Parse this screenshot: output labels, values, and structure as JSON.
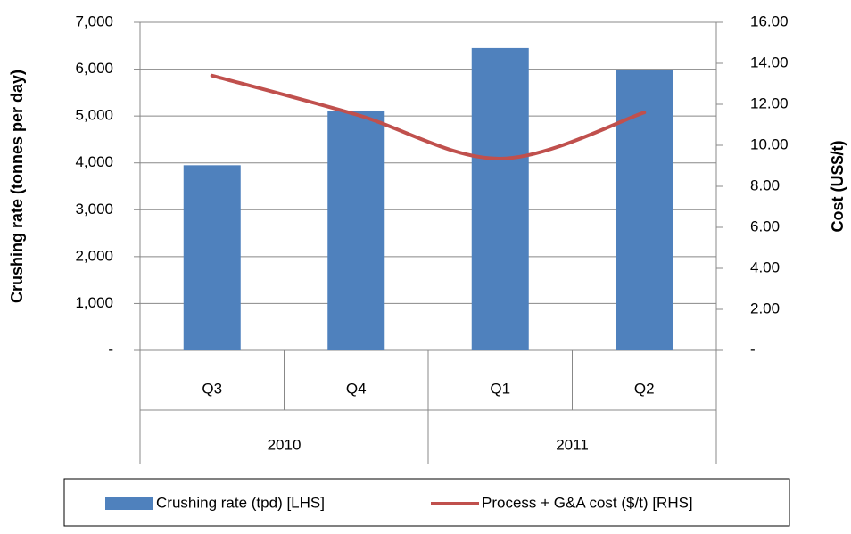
{
  "chart_data": {
    "type": "bar",
    "categories": [
      "Q3",
      "Q4",
      "Q1",
      "Q2"
    ],
    "groups": [
      {
        "label": "2010",
        "count": 2
      },
      {
        "label": "2011",
        "count": 2
      }
    ],
    "series": [
      {
        "name": "Crushing rate (tpd) [LHS]",
        "type": "bar",
        "color": "#4f81bd",
        "values": [
          3950,
          5100,
          6450,
          5980
        ]
      },
      {
        "name": "Process + G&A cost ($/t) [RHS]",
        "type": "line",
        "axis": "y2",
        "color": "#c0504d",
        "values": [
          13.4,
          11.5,
          9.35,
          11.6
        ]
      }
    ],
    "ylabel": "Crushing rate (tonnes per day)",
    "y2label": "Cost (US$/t)",
    "ylim": [
      0,
      7000
    ],
    "yticks": [
      {
        "value": 0,
        "label": "-"
      },
      {
        "value": 1000,
        "label": "1,000"
      },
      {
        "value": 2000,
        "label": "2,000"
      },
      {
        "value": 3000,
        "label": "3,000"
      },
      {
        "value": 4000,
        "label": "4,000"
      },
      {
        "value": 5000,
        "label": "5,000"
      },
      {
        "value": 6000,
        "label": "6,000"
      },
      {
        "value": 7000,
        "label": "7,000"
      }
    ],
    "y2lim": [
      0,
      16
    ],
    "y2ticks": [
      {
        "value": 0,
        "label": "-"
      },
      {
        "value": 2,
        "label": "2.00"
      },
      {
        "value": 4,
        "label": "4.00"
      },
      {
        "value": 6,
        "label": "6.00"
      },
      {
        "value": 8,
        "label": "8.00"
      },
      {
        "value": 10,
        "label": "10.00"
      },
      {
        "value": 12,
        "label": "12.00"
      },
      {
        "value": 14,
        "label": "14.00"
      },
      {
        "value": 16,
        "label": "16.00"
      }
    ],
    "grid": true,
    "legend": "bottom"
  }
}
